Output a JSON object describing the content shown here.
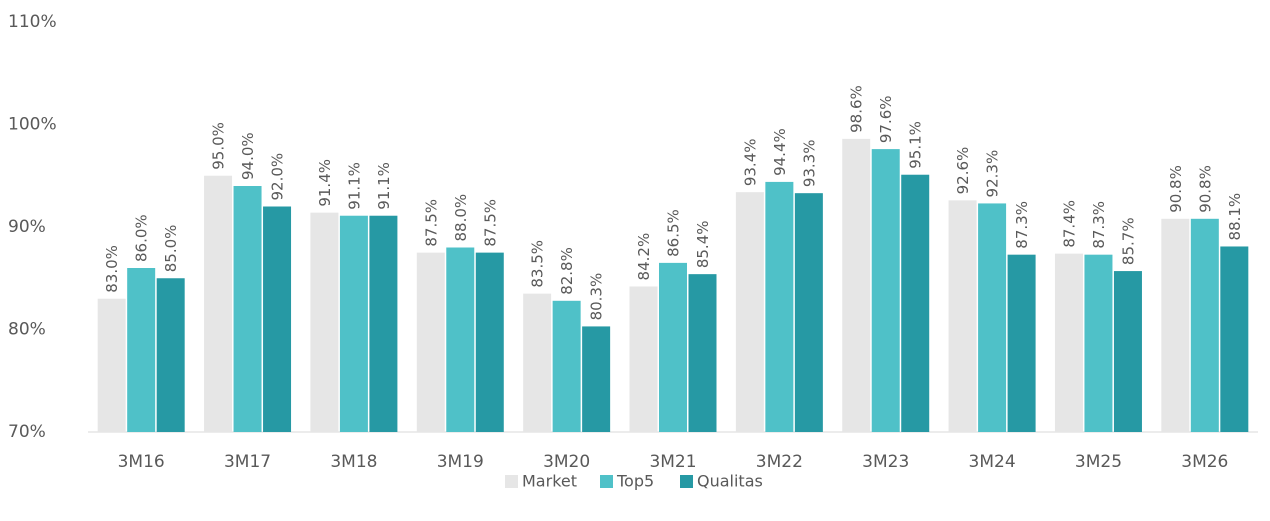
{
  "chart_data": {
    "type": "bar",
    "categories": [
      "3M16",
      "3M17",
      "3M18",
      "3M19",
      "3M20",
      "3M21",
      "3M22",
      "3M23",
      "3M24",
      "3M25",
      "3M26"
    ],
    "series": [
      {
        "name": "Market",
        "color": "#e6e6e6",
        "values": [
          83.0,
          95.0,
          91.4,
          87.5,
          83.5,
          84.2,
          93.4,
          98.6,
          92.6,
          87.4,
          90.8
        ],
        "value_labels": [
          "83.0%",
          "95.0%",
          "91.4%",
          "87.5%",
          "83.5%",
          "84.2%",
          "93.4%",
          "98.6%",
          "92.6%",
          "87.4%",
          "90.8%"
        ]
      },
      {
        "name": "Top5",
        "color": "#4fc1c8",
        "values": [
          86.0,
          94.0,
          91.1,
          88.0,
          82.8,
          86.5,
          94.4,
          97.6,
          92.3,
          87.3,
          90.8
        ],
        "value_labels": [
          "86.0%",
          "94.0%",
          "91.1%",
          "88.0%",
          "82.8%",
          "86.5%",
          "94.4%",
          "97.6%",
          "92.3%",
          "87.3%",
          "90.8%"
        ]
      },
      {
        "name": "Qualitas",
        "color": "#2699a4",
        "values": [
          85.0,
          92.0,
          91.1,
          87.5,
          80.3,
          85.4,
          93.3,
          95.1,
          87.3,
          85.7,
          88.1
        ],
        "value_labels": [
          "85.0%",
          "92.0%",
          "91.1%",
          "87.5%",
          "80.3%",
          "85.4%",
          "93.3%",
          "95.1%",
          "87.3%",
          "85.7%",
          "88.1%"
        ]
      }
    ],
    "ylim": [
      70,
      110
    ],
    "yticks": [
      {
        "value": 70,
        "label": "70%"
      },
      {
        "value": 80,
        "label": "80%"
      },
      {
        "value": 90,
        "label": "90%"
      },
      {
        "value": 100,
        "label": "100%"
      },
      {
        "value": 110,
        "label": "110%"
      }
    ],
    "grid": false,
    "legend": "bottom"
  }
}
